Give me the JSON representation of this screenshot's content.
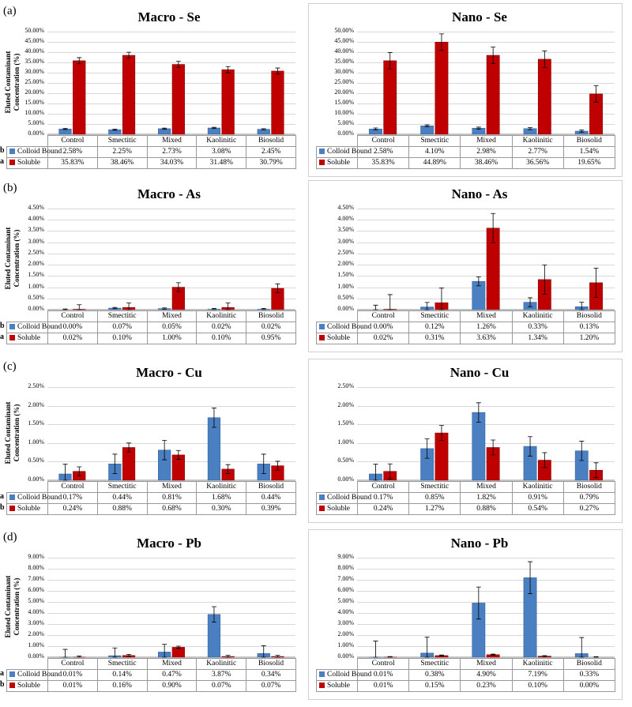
{
  "panel_labels": [
    "(a)",
    "(b)",
    "(c)",
    "(d)"
  ],
  "colors": {
    "colloid": "#4a7fc1",
    "soluble": "#c00000"
  },
  "chart_data": [
    {
      "type": "bar",
      "title": "Macro - Se",
      "ylabel": "Eluted Contaminant Concentration (%)",
      "categories": [
        "Control",
        "Smectitic",
        "Mixed",
        "Kaolinitic",
        "Biosolid"
      ],
      "ylim": [
        0,
        50
      ],
      "ytick_step": 5,
      "ytick_decimals": 2,
      "series": [
        {
          "name": "Colloid Bound",
          "values": [
            2.58,
            2.25,
            2.73,
            3.08,
            2.45
          ],
          "errors": [
            0.3,
            0.3,
            0.3,
            0.3,
            0.3
          ],
          "labels": [
            "2.58%",
            "2.25%",
            "2.73%",
            "3.08%",
            "2.45%"
          ]
        },
        {
          "name": "Soluble",
          "values": [
            35.83,
            38.46,
            34.03,
            31.48,
            30.79
          ],
          "errors": [
            1.5,
            1.5,
            1.5,
            1.5,
            1.5
          ],
          "labels": [
            "35.83%",
            "38.46%",
            "34.03%",
            "31.48%",
            "30.79%"
          ]
        }
      ],
      "row_letters": [
        "b",
        "a"
      ]
    },
    {
      "type": "bar",
      "title": "Nano - Se",
      "ylabel": "",
      "categories": [
        "Control",
        "Smectitic",
        "Mixed",
        "Kaolinitic",
        "Biosolid"
      ],
      "ylim": [
        0,
        50
      ],
      "ytick_step": 5,
      "ytick_decimals": 2,
      "series": [
        {
          "name": "Colloid Bound",
          "values": [
            2.58,
            4.1,
            2.98,
            2.77,
            1.54
          ],
          "errors": [
            0.5,
            0.5,
            0.5,
            0.5,
            0.5
          ],
          "labels": [
            "2.58%",
            "4.10%",
            "2.98%",
            "2.77%",
            "1.54%"
          ]
        },
        {
          "name": "Soluble",
          "values": [
            35.83,
            44.89,
            38.46,
            36.56,
            19.65
          ],
          "errors": [
            4.0,
            4.0,
            4.0,
            4.0,
            4.0
          ],
          "labels": [
            "35.83%",
            "44.89%",
            "38.46%",
            "36.56%",
            "19.65%"
          ]
        }
      ],
      "row_letters": [
        "",
        ""
      ]
    },
    {
      "type": "bar",
      "title": "Macro - As",
      "ylabel": "Eluted Contaminant Concentration (%)",
      "categories": [
        "Control",
        "Smectitic",
        "Mixed",
        "Kaolinitic",
        "Biosolid"
      ],
      "ylim": [
        0,
        4.5
      ],
      "ytick_step": 0.5,
      "ytick_decimals": 2,
      "series": [
        {
          "name": "Colloid Bound",
          "values": [
            0.0,
            0.07,
            0.05,
            0.02,
            0.02
          ],
          "errors": [
            0.03,
            0.03,
            0.03,
            0.03,
            0.03
          ],
          "labels": [
            "0.00%",
            "0.07%",
            "0.05%",
            "0.02%",
            "0.02%"
          ]
        },
        {
          "name": "Soluble",
          "values": [
            0.02,
            0.1,
            1.0,
            0.1,
            0.95
          ],
          "errors": [
            0.2,
            0.2,
            0.2,
            0.2,
            0.2
          ],
          "labels": [
            "0.02%",
            "0.10%",
            "1.00%",
            "0.10%",
            "0.95%"
          ]
        }
      ],
      "row_letters": [
        "b",
        "a"
      ]
    },
    {
      "type": "bar",
      "title": "Nano - As",
      "ylabel": "",
      "categories": [
        "Control",
        "Smectitic",
        "Mixed",
        "Kaolinitic",
        "Biosolid"
      ],
      "ylim": [
        0,
        4.5
      ],
      "ytick_step": 0.5,
      "ytick_decimals": 2,
      "series": [
        {
          "name": "Colloid Bound",
          "values": [
            0.0,
            0.12,
            1.26,
            0.33,
            0.13
          ],
          "errors": [
            0.2,
            0.2,
            0.2,
            0.2,
            0.2
          ],
          "labels": [
            "0.00%",
            "0.12%",
            "1.26%",
            "0.33%",
            "0.13%"
          ]
        },
        {
          "name": "Soluble",
          "values": [
            0.02,
            0.31,
            3.63,
            1.34,
            1.2
          ],
          "errors": [
            0.65,
            0.65,
            0.65,
            0.65,
            0.65
          ],
          "labels": [
            "0.02%",
            "0.31%",
            "3.63%",
            "1.34%",
            "1.20%"
          ]
        }
      ],
      "row_letters": [
        "",
        ""
      ]
    },
    {
      "type": "bar",
      "title": "Macro - Cu",
      "ylabel": "Eluted Contaminant Concentration (%)",
      "categories": [
        "Control",
        "Smectitic",
        "Mixed",
        "Kaolinitic",
        "Biosolid"
      ],
      "ylim": [
        0,
        2.5
      ],
      "ytick_step": 0.5,
      "ytick_decimals": 2,
      "series": [
        {
          "name": "Colloid Bound",
          "values": [
            0.17,
            0.44,
            0.81,
            1.68,
            0.44
          ],
          "errors": [
            0.26,
            0.26,
            0.26,
            0.26,
            0.26
          ],
          "labels": [
            "0.17%",
            "0.44%",
            "0.81%",
            "1.68%",
            "0.44%"
          ]
        },
        {
          "name": "Soluble",
          "values": [
            0.24,
            0.88,
            0.68,
            0.3,
            0.39
          ],
          "errors": [
            0.12,
            0.12,
            0.12,
            0.12,
            0.12
          ],
          "labels": [
            "0.24%",
            "0.88%",
            "0.68%",
            "0.30%",
            "0.39%"
          ]
        }
      ],
      "row_letters": [
        "a",
        "b"
      ]
    },
    {
      "type": "bar",
      "title": "Nano - Cu",
      "ylabel": "",
      "categories": [
        "Control",
        "Smectitic",
        "Mixed",
        "Kaolinitic",
        "Biosolid"
      ],
      "ylim": [
        0,
        2.5
      ],
      "ytick_step": 0.5,
      "ytick_decimals": 2,
      "series": [
        {
          "name": "Colloid Bound",
          "values": [
            0.17,
            0.85,
            1.82,
            0.91,
            0.79
          ],
          "errors": [
            0.26,
            0.26,
            0.26,
            0.26,
            0.26
          ],
          "labels": [
            "0.17%",
            "0.85%",
            "1.82%",
            "0.91%",
            "0.79%"
          ]
        },
        {
          "name": "Soluble",
          "values": [
            0.24,
            1.27,
            0.88,
            0.54,
            0.27
          ],
          "errors": [
            0.2,
            0.2,
            0.2,
            0.2,
            0.2
          ],
          "labels": [
            "0.24%",
            "1.27%",
            "0.88%",
            "0.54%",
            "0.27%"
          ]
        }
      ],
      "row_letters": [
        "",
        ""
      ]
    },
    {
      "type": "bar",
      "title": "Macro - Pb",
      "ylabel": "Eluted Contaminant Concentration (%)",
      "categories": [
        "Control",
        "Smectitic",
        "Mixed",
        "Kaolinitic",
        "Biosolid"
      ],
      "ylim": [
        0,
        9
      ],
      "ytick_step": 1,
      "ytick_decimals": 2,
      "series": [
        {
          "name": "Colloid Bound",
          "values": [
            0.01,
            0.14,
            0.47,
            3.87,
            0.34
          ],
          "errors": [
            0.7,
            0.7,
            0.7,
            0.7,
            0.7
          ],
          "labels": [
            "0.01%",
            "0.14%",
            "0.47%",
            "3.87%",
            "0.34%"
          ]
        },
        {
          "name": "Soluble",
          "values": [
            0.01,
            0.16,
            0.9,
            0.07,
            0.07
          ],
          "errors": [
            0.1,
            0.1,
            0.1,
            0.1,
            0.1
          ],
          "labels": [
            "0.01%",
            "0.16%",
            "0.90%",
            "0.07%",
            "0.07%"
          ]
        }
      ],
      "row_letters": [
        "a",
        "b"
      ]
    },
    {
      "type": "bar",
      "title": "Nano - Pb",
      "ylabel": "",
      "categories": [
        "Control",
        "Smectitic",
        "Mixed",
        "Kaolinitic",
        "Biosolid"
      ],
      "ylim": [
        0,
        9
      ],
      "ytick_step": 1,
      "ytick_decimals": 2,
      "series": [
        {
          "name": "Colloid Bound",
          "values": [
            0.01,
            0.38,
            4.9,
            7.19,
            0.33
          ],
          "errors": [
            1.45,
            1.45,
            1.45,
            1.45,
            1.45
          ],
          "labels": [
            "0.01%",
            "0.38%",
            "4.90%",
            "7.19%",
            "0.33%"
          ]
        },
        {
          "name": "Soluble",
          "values": [
            0.01,
            0.15,
            0.23,
            0.1,
            0.0
          ],
          "errors": [
            0.05,
            0.05,
            0.05,
            0.05,
            0.05
          ],
          "labels": [
            "0.01%",
            "0.15%",
            "0.23%",
            "0.10%",
            "0.00%"
          ]
        }
      ],
      "row_letters": [
        "",
        ""
      ]
    }
  ]
}
